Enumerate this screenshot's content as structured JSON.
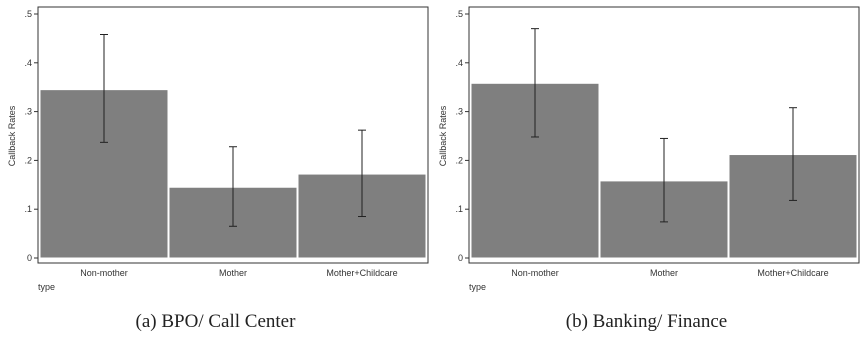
{
  "chart_data": [
    {
      "type": "bar",
      "caption": "(a) BPO/ Call Center",
      "categories": [
        "Non-mother",
        "Mother",
        "Mother+Childcare"
      ],
      "values": [
        0.345,
        0.145,
        0.172
      ],
      "error_low": [
        0.237,
        0.065,
        0.085
      ],
      "error_high": [
        0.458,
        0.228,
        0.262
      ],
      "ylabel": "Callback Rates",
      "xlabel": "type",
      "ylim": [
        0,
        0.5
      ],
      "yticks": [
        0,
        0.1,
        0.2,
        0.3,
        0.4,
        0.5
      ],
      "ytick_labels": [
        "0",
        ".1",
        ".2",
        ".3",
        ".4",
        ".5"
      ],
      "grid": false,
      "bar_color": "#7f7f7f"
    },
    {
      "type": "bar",
      "caption": "(b) Banking/ Finance",
      "categories": [
        "Non-mother",
        "Mother",
        "Mother+Childcare"
      ],
      "values": [
        0.358,
        0.158,
        0.212
      ],
      "error_low": [
        0.248,
        0.074,
        0.118
      ],
      "error_high": [
        0.47,
        0.245,
        0.308
      ],
      "ylabel": "Callback Rates",
      "xlabel": "type",
      "ylim": [
        0,
        0.5
      ],
      "yticks": [
        0,
        0.1,
        0.2,
        0.3,
        0.4,
        0.5
      ],
      "ytick_labels": [
        "0",
        ".1",
        ".2",
        ".3",
        ".4",
        ".5"
      ],
      "grid": false,
      "bar_color": "#7f7f7f"
    }
  ]
}
